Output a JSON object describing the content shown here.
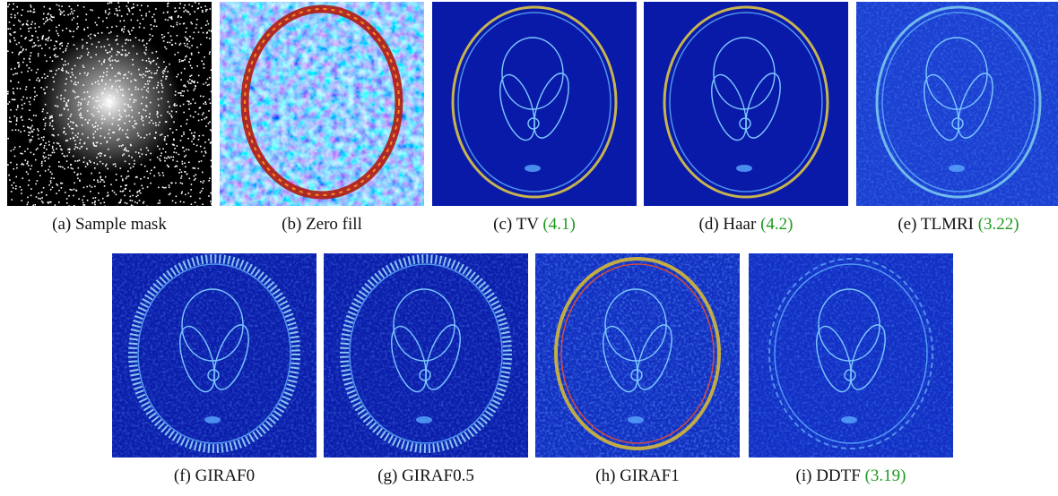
{
  "figure": {
    "rows": [
      [
        {
          "label": "(a)",
          "name": "Sample mask"
        },
        {
          "label": "(b)",
          "name": "Zero fill"
        },
        {
          "label": "(c)",
          "name": "TV",
          "ref": "(4.1)"
        },
        {
          "label": "(d)",
          "name": "Haar",
          "ref": "(4.2)"
        },
        {
          "label": "(e)",
          "name": "TLMRI",
          "ref": "(3.22)"
        }
      ],
      [
        {
          "label": "(f)",
          "name": "GIRAF0"
        },
        {
          "label": "(g)",
          "name": "GIRAF0.5"
        },
        {
          "label": "(h)",
          "name": "GIRAF1"
        },
        {
          "label": "(i)",
          "name": "DDTF",
          "ref": "(3.19)"
        }
      ]
    ]
  }
}
